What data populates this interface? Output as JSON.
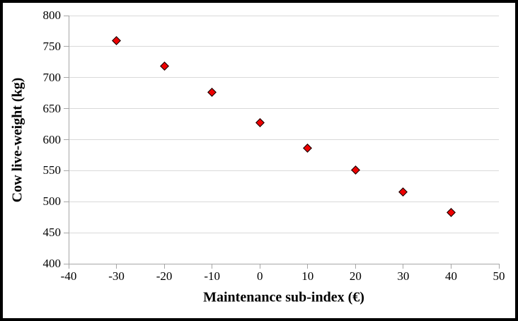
{
  "figure": {
    "background": "#ffffff",
    "border_color": "#000000"
  },
  "chart_data": {
    "type": "scatter",
    "title": "",
    "xlabel": "Maintenance sub-index (€)",
    "ylabel": "Cow live-weight (kg)",
    "x": [
      -30,
      -20,
      -10,
      0,
      10,
      20,
      30,
      40
    ],
    "y": [
      759,
      718,
      676,
      627,
      586,
      551,
      516,
      483
    ],
    "xlim": [
      -40,
      50
    ],
    "ylim": [
      400,
      800
    ],
    "x_ticks": [
      -40,
      -30,
      -20,
      -10,
      0,
      10,
      20,
      30,
      40,
      50
    ],
    "y_ticks": [
      400,
      450,
      500,
      550,
      600,
      650,
      700,
      750,
      800
    ],
    "grid": "horizontal-only",
    "legend": "none",
    "marker": {
      "shape": "diamond",
      "fill": "#ee0000",
      "stroke": "#000000"
    },
    "colors": {
      "gridline": "#d9d9d9",
      "axis": "#a6a6a6",
      "text": "#000000"
    }
  }
}
